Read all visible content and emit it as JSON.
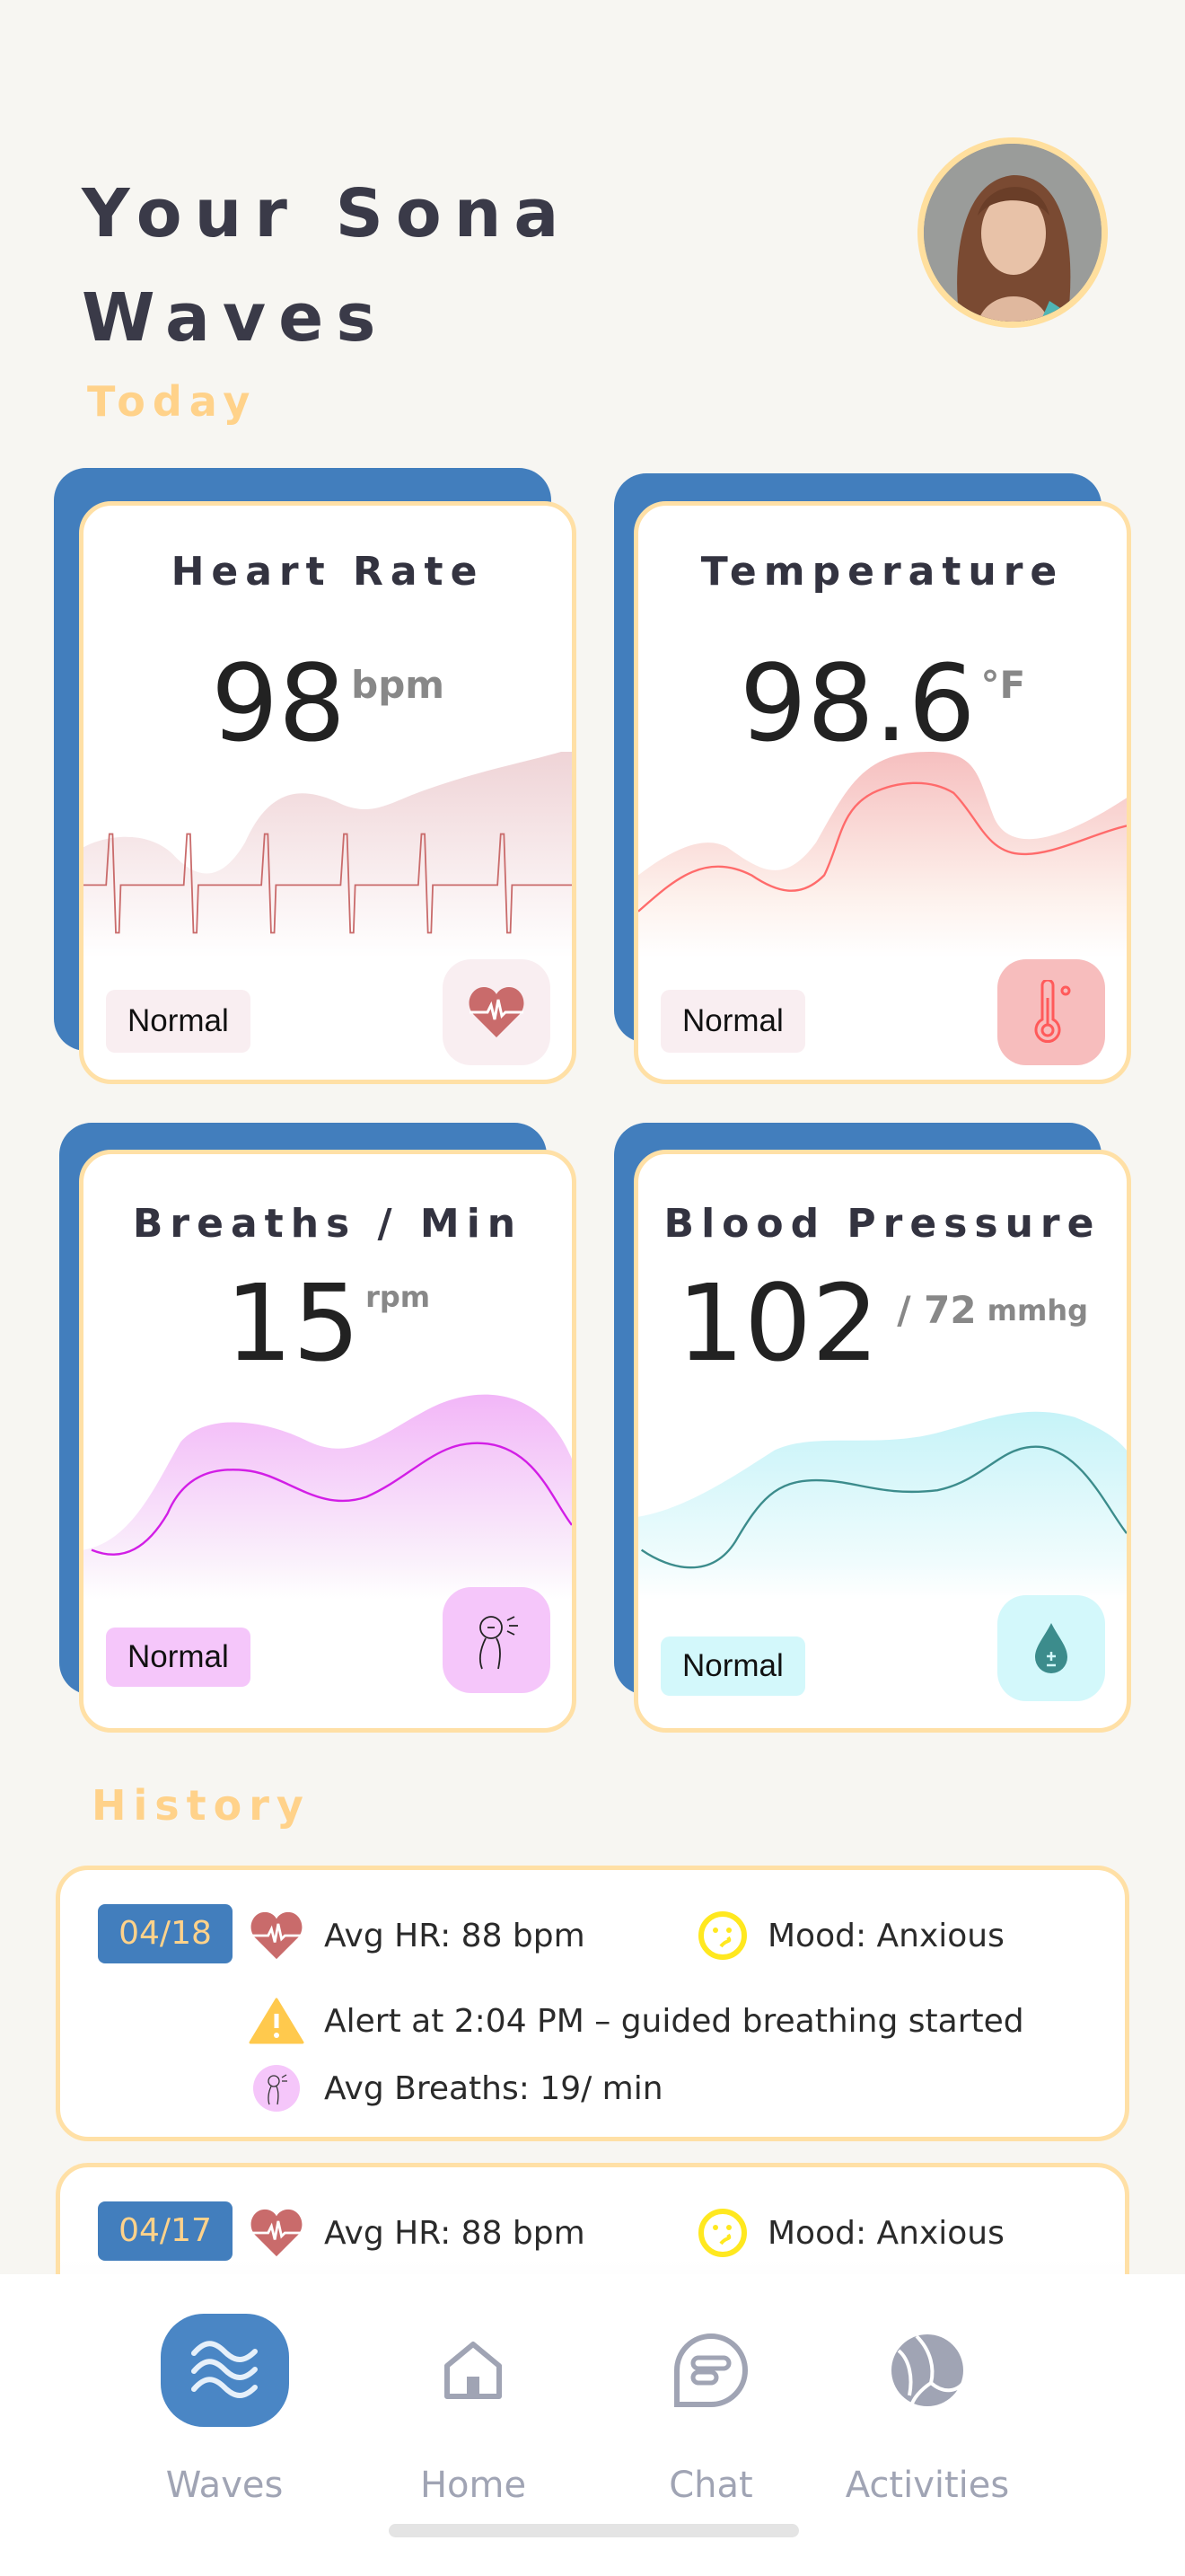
{
  "header": {
    "title_line1": "Your Sona",
    "title_line2": "Waves",
    "avatar": "user-avatar"
  },
  "today": {
    "label": "Today",
    "cards": [
      {
        "title": "Heart Rate",
        "value": "98",
        "unit": "bpm",
        "status": "Normal",
        "icon": "heart-pulse-icon",
        "accent": "#C96B6B"
      },
      {
        "title": "Temperature",
        "value": "98.6",
        "unit": "°F",
        "status": "Normal",
        "icon": "thermometer-icon",
        "accent": "#FF6B6B"
      },
      {
        "title": "Breaths / Min",
        "value": "15",
        "unit": "rpm",
        "status": "Normal",
        "icon": "breathing-icon",
        "accent": "#D21EE6"
      },
      {
        "title": "Blood Pressure",
        "value": "102",
        "unit": "/ 72",
        "unit2": "mmhg",
        "status": "Normal",
        "icon": "blood-drop-icon",
        "accent": "#3C8C8C"
      }
    ]
  },
  "history": {
    "label": "History",
    "entries": [
      {
        "date": "04/18",
        "avg_hr": "Avg HR: 88 bpm",
        "mood": "Mood: Anxious",
        "alert": "Alert at 2:04 PM – guided breathing started",
        "breaths": "Avg Breaths: 19/ min"
      },
      {
        "date": "04/17",
        "avg_hr": "Avg HR: 88 bpm",
        "mood": "Mood: Anxious"
      }
    ]
  },
  "nav": {
    "items": [
      {
        "label": "Waves",
        "icon": "waves-icon",
        "active": true
      },
      {
        "label": "Home",
        "icon": "home-icon"
      },
      {
        "label": "Chat",
        "icon": "chat-icon"
      },
      {
        "label": "Activities",
        "icon": "volleyball-icon"
      }
    ]
  }
}
